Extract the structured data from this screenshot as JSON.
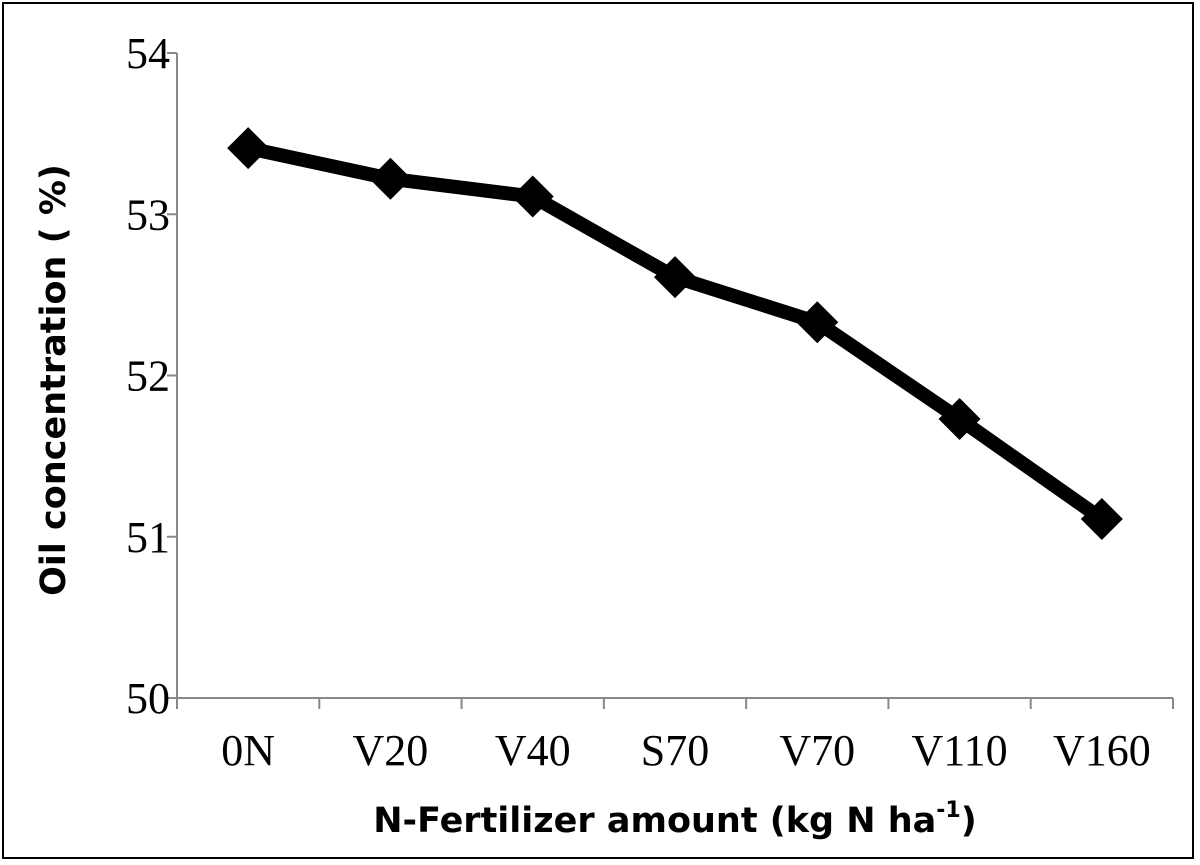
{
  "chart_data": {
    "type": "line",
    "categories": [
      "0N",
      "V20",
      "V40",
      "S70",
      "V70",
      "V110",
      "V160"
    ],
    "series": [
      {
        "values": [
          53.41,
          53.22,
          53.11,
          52.61,
          52.33,
          51.73,
          51.11
        ],
        "color": "#000000",
        "marker": "diamond"
      }
    ],
    "xlabel": "N-Fertilizer amount (kg N ha",
    "xlabel_superscript": "-1",
    "xlabel_suffix": ")",
    "ylabel": "Oil concentration ( %)",
    "ylim": [
      50,
      54
    ],
    "yticks": [
      50,
      51,
      52,
      53,
      54
    ],
    "grid": false,
    "legend": "none"
  }
}
